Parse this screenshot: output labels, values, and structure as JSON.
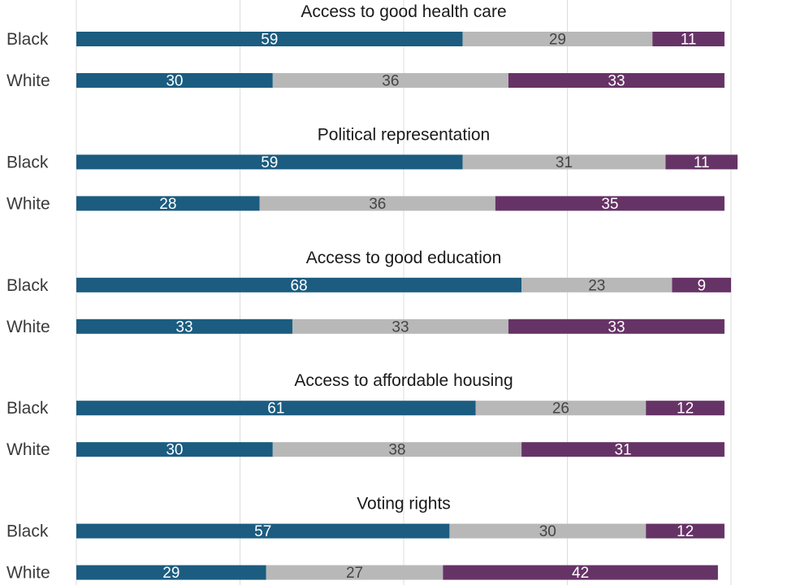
{
  "colors": {
    "segment": [
      "#1b5c80",
      "#b8b8b8",
      "#663366"
    ],
    "segment_label": [
      "#ffffff",
      "#444444",
      "#ffffff"
    ],
    "gridline": "#dddddd"
  },
  "chart_data": {
    "type": "bar",
    "orientation": "horizontal",
    "stacked": true,
    "xlim": [
      0,
      100
    ],
    "grid": true,
    "gridline_values": [
      0,
      25,
      50,
      75,
      100
    ],
    "groups": [
      {
        "title": "Access to good health care",
        "rows": [
          {
            "label": "Black",
            "values": [
              59,
              29,
              11
            ]
          },
          {
            "label": "White",
            "values": [
              30,
              36,
              33
            ]
          }
        ]
      },
      {
        "title": "Political representation",
        "rows": [
          {
            "label": "Black",
            "values": [
              59,
              31,
              11
            ]
          },
          {
            "label": "White",
            "values": [
              28,
              36,
              35
            ]
          }
        ]
      },
      {
        "title": "Access to good education",
        "rows": [
          {
            "label": "Black",
            "values": [
              68,
              23,
              9
            ]
          },
          {
            "label": "White",
            "values": [
              33,
              33,
              33
            ]
          }
        ]
      },
      {
        "title": "Access to affordable housing",
        "rows": [
          {
            "label": "Black",
            "values": [
              61,
              26,
              12
            ]
          },
          {
            "label": "White",
            "values": [
              30,
              38,
              31
            ]
          }
        ]
      },
      {
        "title": "Voting rights",
        "rows": [
          {
            "label": "Black",
            "values": [
              57,
              30,
              12
            ]
          },
          {
            "label": "White",
            "values": [
              29,
              27,
              42
            ]
          }
        ]
      }
    ]
  }
}
